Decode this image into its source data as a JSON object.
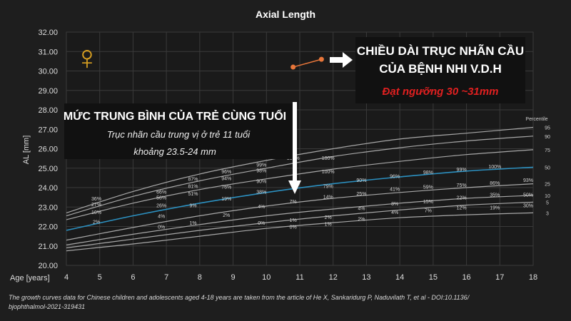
{
  "chart_data": {
    "type": "line",
    "title": "Axial Length",
    "ylabel": "AL [mm]",
    "xlabel": "Age [years]",
    "xlim": [
      4,
      18
    ],
    "ylim": [
      20.0,
      32.0
    ],
    "x_ticks": [
      4,
      5,
      6,
      7,
      8,
      9,
      10,
      11,
      12,
      13,
      14,
      15,
      16,
      17,
      18
    ],
    "y_ticks": [
      "20.00",
      "21.00",
      "22.00",
      "23.00",
      "24.00",
      "25.00",
      "26.00",
      "27.00",
      "28.00",
      "29.00",
      "30.00",
      "31.00",
      "32.00"
    ],
    "grid": true,
    "legend_title": "Percentile",
    "x": [
      4,
      6,
      8,
      10,
      12,
      14,
      16,
      18
    ],
    "series": [
      {
        "name": "95",
        "highlight": false,
        "values": [
          22.7,
          23.8,
          24.7,
          25.4,
          26.0,
          26.5,
          26.8,
          27.1
        ]
      },
      {
        "name": "90",
        "highlight": false,
        "values": [
          22.55,
          23.55,
          24.35,
          25.0,
          25.6,
          26.05,
          26.4,
          26.65
        ]
      },
      {
        "name": "75",
        "highlight": false,
        "values": [
          22.35,
          23.2,
          23.9,
          24.45,
          24.95,
          25.35,
          25.7,
          25.95
        ]
      },
      {
        "name": "50",
        "highlight": true,
        "values": [
          21.8,
          22.55,
          23.2,
          23.75,
          24.2,
          24.55,
          24.85,
          25.05
        ]
      },
      {
        "name": "25",
        "highlight": false,
        "values": [
          21.3,
          21.95,
          22.55,
          23.05,
          23.45,
          23.75,
          24.0,
          24.2
        ]
      },
      {
        "name": "10",
        "highlight": false,
        "values": [
          21.05,
          21.6,
          22.1,
          22.55,
          22.9,
          23.2,
          23.45,
          23.6
        ]
      },
      {
        "name": "5",
        "highlight": false,
        "values": [
          20.9,
          21.35,
          21.8,
          22.2,
          22.55,
          22.85,
          23.1,
          23.25
        ]
      },
      {
        "name": "3",
        "highlight": false,
        "values": [
          20.75,
          21.1,
          21.5,
          21.9,
          22.2,
          22.45,
          22.6,
          22.7
        ]
      }
    ],
    "percent_labels": [
      {
        "x": 4.9,
        "y": 23.45,
        "text": "36%"
      },
      {
        "x": 4.9,
        "y": 23.15,
        "text": "27%"
      },
      {
        "x": 4.9,
        "y": 22.75,
        "text": "10%"
      },
      {
        "x": 4.9,
        "y": 22.25,
        "text": "2%"
      },
      {
        "x": 6.85,
        "y": 23.8,
        "text": "66%"
      },
      {
        "x": 6.85,
        "y": 23.5,
        "text": "56%"
      },
      {
        "x": 6.85,
        "y": 23.1,
        "text": "26%"
      },
      {
        "x": 6.85,
        "y": 22.55,
        "text": "4%"
      },
      {
        "x": 6.85,
        "y": 22.0,
        "text": "0%"
      },
      {
        "x": 7.8,
        "y": 24.45,
        "text": "87%"
      },
      {
        "x": 7.8,
        "y": 24.1,
        "text": "81%"
      },
      {
        "x": 7.8,
        "y": 23.7,
        "text": "51%"
      },
      {
        "x": 7.8,
        "y": 23.1,
        "text": "9%"
      },
      {
        "x": 7.8,
        "y": 22.2,
        "text": "1%"
      },
      {
        "x": 8.8,
        "y": 24.85,
        "text": "96%"
      },
      {
        "x": 8.8,
        "y": 24.5,
        "text": "94%"
      },
      {
        "x": 8.8,
        "y": 24.05,
        "text": "76%"
      },
      {
        "x": 8.8,
        "y": 23.45,
        "text": "19%"
      },
      {
        "x": 8.8,
        "y": 22.6,
        "text": "2%"
      },
      {
        "x": 9.85,
        "y": 25.2,
        "text": "99%"
      },
      {
        "x": 9.85,
        "y": 24.9,
        "text": "98%"
      },
      {
        "x": 9.85,
        "y": 24.35,
        "text": "90%"
      },
      {
        "x": 9.85,
        "y": 23.8,
        "text": "38%"
      },
      {
        "x": 9.85,
        "y": 23.05,
        "text": "4%"
      },
      {
        "x": 9.85,
        "y": 22.2,
        "text": "0%"
      },
      {
        "x": 10.8,
        "y": 25.55,
        "text": "100%"
      },
      {
        "x": 10.8,
        "y": 23.3,
        "text": "7%"
      },
      {
        "x": 10.8,
        "y": 22.35,
        "text": "1%"
      },
      {
        "x": 10.8,
        "y": 22.0,
        "text": "0%"
      },
      {
        "x": 11.85,
        "y": 25.55,
        "text": "100%"
      },
      {
        "x": 11.85,
        "y": 24.85,
        "text": "100%"
      },
      {
        "x": 11.85,
        "y": 24.1,
        "text": "79%"
      },
      {
        "x": 11.85,
        "y": 23.55,
        "text": "14%"
      },
      {
        "x": 11.85,
        "y": 22.5,
        "text": "2%"
      },
      {
        "x": 11.85,
        "y": 22.15,
        "text": "1%"
      },
      {
        "x": 12.85,
        "y": 24.4,
        "text": "90%"
      },
      {
        "x": 12.85,
        "y": 23.7,
        "text": "25%"
      },
      {
        "x": 12.85,
        "y": 22.95,
        "text": "4%"
      },
      {
        "x": 12.85,
        "y": 22.4,
        "text": "2%"
      },
      {
        "x": 13.85,
        "y": 24.6,
        "text": "96%"
      },
      {
        "x": 13.85,
        "y": 23.95,
        "text": "41%"
      },
      {
        "x": 13.85,
        "y": 23.2,
        "text": "8%"
      },
      {
        "x": 13.85,
        "y": 22.75,
        "text": "4%"
      },
      {
        "x": 14.85,
        "y": 24.8,
        "text": "98%"
      },
      {
        "x": 14.85,
        "y": 24.05,
        "text": "59%"
      },
      {
        "x": 14.85,
        "y": 23.3,
        "text": "15%"
      },
      {
        "x": 14.85,
        "y": 22.85,
        "text": "7%"
      },
      {
        "x": 15.85,
        "y": 24.95,
        "text": "99%"
      },
      {
        "x": 15.85,
        "y": 24.15,
        "text": "75%"
      },
      {
        "x": 15.85,
        "y": 23.5,
        "text": "22%"
      },
      {
        "x": 15.85,
        "y": 23.0,
        "text": "12%"
      },
      {
        "x": 16.85,
        "y": 25.1,
        "text": "100%"
      },
      {
        "x": 16.85,
        "y": 24.25,
        "text": "86%"
      },
      {
        "x": 16.85,
        "y": 23.65,
        "text": "35%"
      },
      {
        "x": 16.85,
        "y": 23.0,
        "text": "19%"
      },
      {
        "x": 17.85,
        "y": 24.4,
        "text": "93%"
      },
      {
        "x": 17.85,
        "y": 23.65,
        "text": "50%"
      },
      {
        "x": 17.85,
        "y": 23.1,
        "text": "30%"
      }
    ],
    "patient": {
      "x": [
        10.8,
        11.65
      ],
      "values": [
        30.2,
        30.6
      ],
      "color": "#e8763a"
    },
    "median_color": "#2c90c0",
    "curve_color": "#a8a8a8"
  },
  "annotations": {
    "female_symbol": "♀",
    "female_color": "#d9a021",
    "patient_line1": "CHIỀU DÀI TRỤC NHÃN CẦU",
    "patient_line2": "CỦA BỆNH NHI V.D.H",
    "patient_line3": "Đạt ngưỡng 30 ~31mm",
    "patient_line3_color": "#e02020",
    "average_title": "MỨC TRUNG BÌNH CỦA TRẺ CÙNG TUỔI",
    "average_sub1": "Trục nhãn cầu trung vị ở trẻ 11 tuổi",
    "average_sub2": "khoảng 23.5-24 mm"
  },
  "footer": {
    "line1": "The growth curves data for Chinese children and adolescents aged 4-18 years are taken from the article of He X, Sankaridurg P, Naduvilath T, et al - DOI:10.1136/",
    "line2": "bjophthalmol-2021-319431"
  }
}
